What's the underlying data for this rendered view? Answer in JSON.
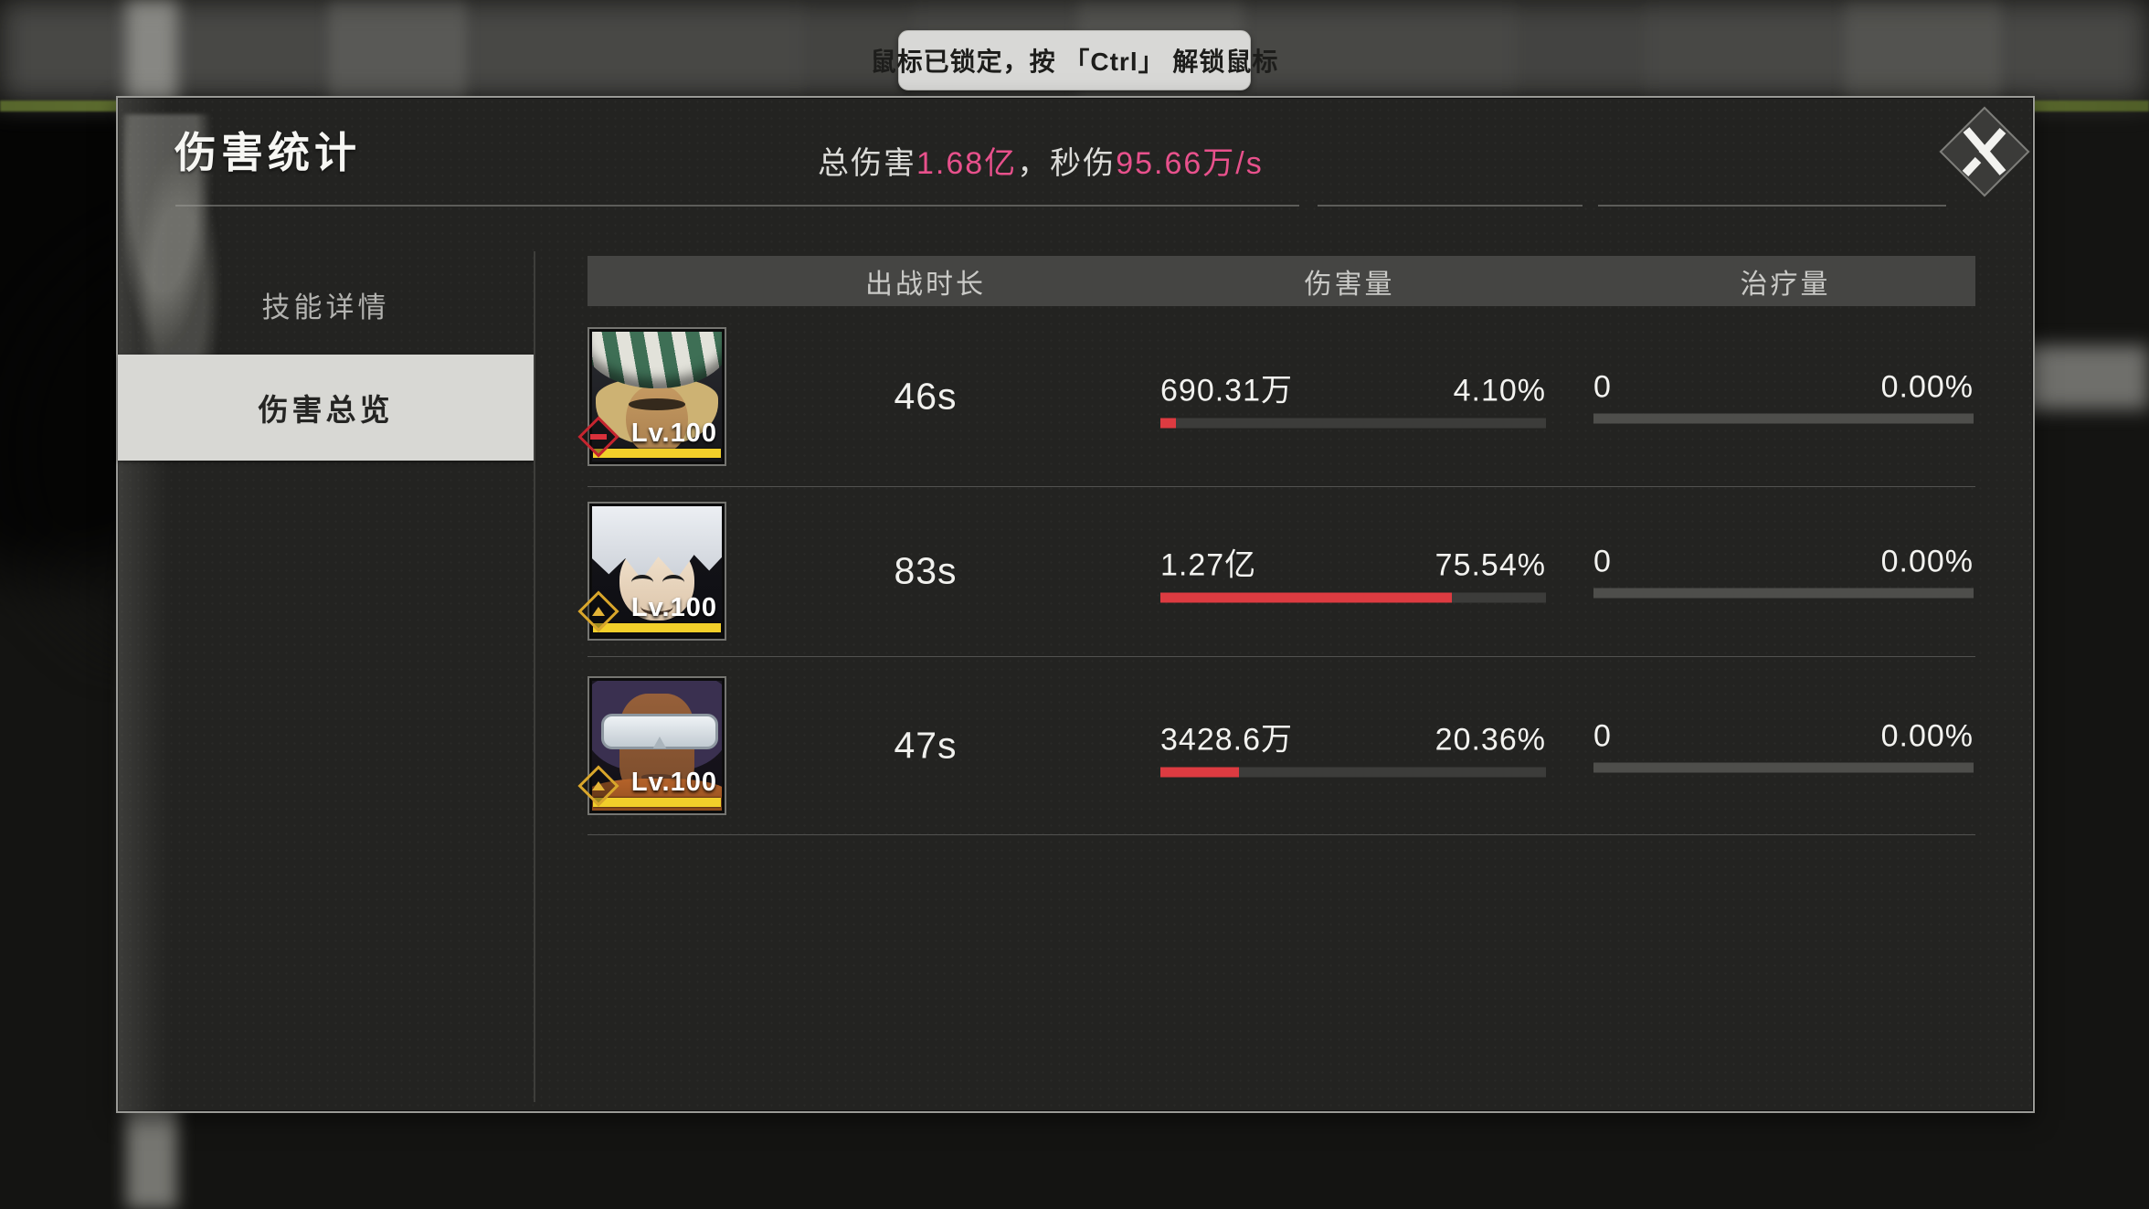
{
  "toast": {
    "text": "鼠标已锁定，按 「Ctrl」 解锁鼠标"
  },
  "panel": {
    "title": "伤害统计",
    "summary": {
      "total_label": "总伤害",
      "total_value": "1.68亿",
      "dps_label": "，秒伤",
      "dps_value": "95.66万/s"
    },
    "close_icon": "close-x-icon",
    "sidebar": {
      "items": [
        {
          "label": "技能详情",
          "selected": false
        },
        {
          "label": "伤害总览",
          "selected": true
        }
      ]
    },
    "table": {
      "headers": [
        "出战时长",
        "伤害量",
        "治疗量"
      ],
      "rows": [
        {
          "character": "urahara-green-striped-hat",
          "badge_icon": "red-attribute-diamond-icon",
          "level": "Lv.100",
          "time": "46s",
          "damage": "690.31万",
          "damage_pct": "4.10%",
          "damage_pct_value": 4.1,
          "heal": "0",
          "heal_pct": "0.00%",
          "heal_pct_value": 0
        },
        {
          "character": "gin-silver-hair",
          "badge_icon": "gold-rank-diamond-icon",
          "level": "Lv.100",
          "time": "83s",
          "damage": "1.27亿",
          "damage_pct": "75.54%",
          "damage_pct_value": 75.54,
          "heal": "0",
          "heal_pct": "0.00%",
          "heal_pct_value": 0
        },
        {
          "character": "goggles-orange-collar",
          "badge_icon": "gold-rank-diamond-icon",
          "level": "Lv.100",
          "time": "47s",
          "damage": "3428.6万",
          "damage_pct": "20.36%",
          "damage_pct_value": 20.36,
          "heal": "0",
          "heal_pct": "0.00%",
          "heal_pct_value": 0
        }
      ]
    }
  },
  "colors": {
    "accent_pink": "#e8518c",
    "bar_red": "#dd3b41",
    "bar_track": "#3c3c3a",
    "hp_yellow": "#f2cf2a",
    "selected_tab_bg": "#d8d8d4",
    "panel_bg": "#232321",
    "toast_bg": "#d8d8d6"
  }
}
